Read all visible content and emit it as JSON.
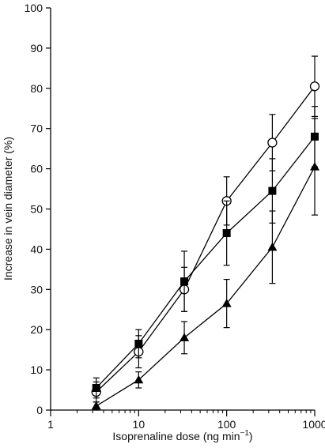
{
  "chart_data": {
    "type": "line",
    "xscale": "log",
    "xlim": [
      1,
      1000
    ],
    "ylim": [
      0,
      100
    ],
    "xlabel_main": "Isoprenaline dose (ng min",
    "xlabel_sup": "−1",
    "xlabel_end": ")",
    "ylabel": "Increase in vein diameter (%)",
    "xticks": [
      1,
      10,
      100,
      1000
    ],
    "xtick_labels": [
      "1",
      "10",
      "100",
      "1000"
    ],
    "yticks": [
      0,
      10,
      20,
      30,
      40,
      50,
      60,
      70,
      80,
      90,
      100
    ],
    "ytick_labels": [
      "0",
      "10",
      "20",
      "30",
      "40",
      "50",
      "60",
      "70",
      "80",
      "90",
      "100"
    ],
    "grid": false,
    "series": [
      {
        "marker": "open-circle",
        "color": "#000000",
        "x": [
          3.3,
          10,
          33,
          100,
          330,
          1000
        ],
        "y": [
          4.5,
          14.5,
          30,
          52,
          66.5,
          80.5
        ],
        "err": [
          2.5,
          4,
          5.5,
          6,
          7,
          7.5
        ]
      },
      {
        "marker": "filled-square",
        "color": "#000000",
        "x": [
          3.3,
          10,
          33,
          100,
          330,
          1000
        ],
        "y": [
          5.5,
          16.5,
          32,
          44,
          54.5,
          68
        ],
        "err": [
          2.5,
          3.5,
          7.5,
          8,
          8,
          7.5
        ]
      },
      {
        "marker": "filled-triangle",
        "color": "#000000",
        "x": [
          3.3,
          10,
          33,
          100,
          330,
          1000
        ],
        "y": [
          1,
          7.5,
          18,
          26.5,
          40.5,
          60.5
        ],
        "err": [
          1,
          2,
          4,
          6,
          9,
          12
        ]
      }
    ]
  }
}
